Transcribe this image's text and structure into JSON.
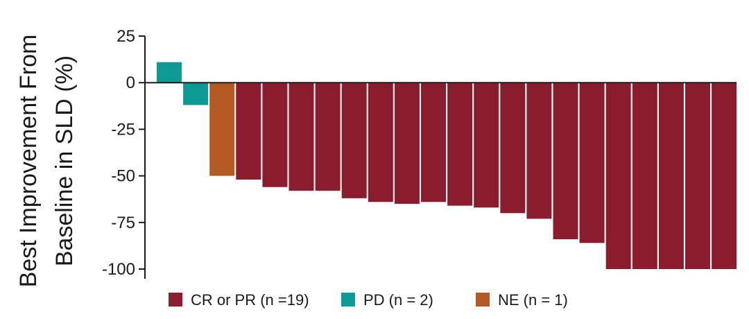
{
  "chart_data": {
    "type": "bar",
    "ylabel_lines": [
      "Best  Improvement From",
      "Baseline in SLD (%)"
    ],
    "ylim": [
      -100,
      25
    ],
    "yticks": [
      25,
      0,
      -25,
      -50,
      -75,
      -100
    ],
    "ytick_labels": [
      "25",
      "0",
      "-25",
      "-50",
      "-75",
      "-100"
    ],
    "grid": false,
    "legend_position": "bottom",
    "groups": [
      {
        "key": "crpr",
        "label": "CR or PR (n =19)",
        "color": "#8b1c2e"
      },
      {
        "key": "pd",
        "label": "PD (n = 2)",
        "color": "#0e9a94"
      },
      {
        "key": "ne",
        "label": "NE (n = 1)",
        "color": "#b35a24"
      }
    ],
    "bars": [
      {
        "group": "pd",
        "value": 11
      },
      {
        "group": "pd",
        "value": -12
      },
      {
        "group": "ne",
        "value": -50
      },
      {
        "group": "crpr",
        "value": -52
      },
      {
        "group": "crpr",
        "value": -56
      },
      {
        "group": "crpr",
        "value": -58
      },
      {
        "group": "crpr",
        "value": -58
      },
      {
        "group": "crpr",
        "value": -62
      },
      {
        "group": "crpr",
        "value": -64
      },
      {
        "group": "crpr",
        "value": -65
      },
      {
        "group": "crpr",
        "value": -64
      },
      {
        "group": "crpr",
        "value": -66
      },
      {
        "group": "crpr",
        "value": -67
      },
      {
        "group": "crpr",
        "value": -70
      },
      {
        "group": "crpr",
        "value": -73
      },
      {
        "group": "crpr",
        "value": -84
      },
      {
        "group": "crpr",
        "value": -86
      },
      {
        "group": "crpr",
        "value": -100
      },
      {
        "group": "crpr",
        "value": -100
      },
      {
        "group": "crpr",
        "value": -100
      },
      {
        "group": "crpr",
        "value": -100
      },
      {
        "group": "crpr",
        "value": -100
      }
    ]
  }
}
